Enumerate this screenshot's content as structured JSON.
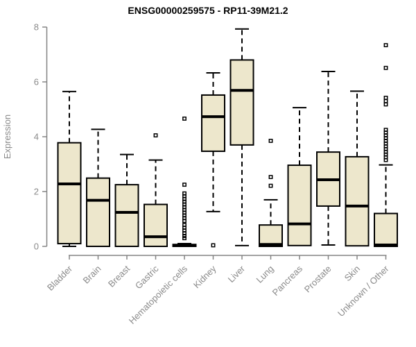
{
  "chart_data": {
    "type": "boxplot",
    "title": "ENSG00000259575 - RP11-39M21.2",
    "ylabel": "Expression",
    "ylim": [
      0,
      8
    ],
    "yticks": [
      0,
      2,
      4,
      6,
      8
    ],
    "grid": false,
    "legend": "none",
    "box_fill": "#EDE7CC",
    "box_stroke": "#000000",
    "median_color": "#000000",
    "axis_color": "#848484",
    "label_color": "#8A8A8A",
    "title_color": "#000000",
    "categories": [
      "Bladder",
      "Brain",
      "Breast",
      "Gastric",
      "Hematopoietic cells",
      "Kidney",
      "Liver",
      "Lung",
      "Pancreas",
      "Prostate",
      "Skin",
      "Unknown / Other"
    ],
    "boxes": [
      {
        "category": "Bladder",
        "low": 0.0,
        "q1": 0.1,
        "median": 2.28,
        "q3": 3.78,
        "high": 5.65,
        "outliers": []
      },
      {
        "category": "Brain",
        "low": 0.0,
        "q1": 0.0,
        "median": 1.68,
        "q3": 2.49,
        "high": 4.27,
        "outliers": []
      },
      {
        "category": "Breast",
        "low": 0.0,
        "q1": 0.0,
        "median": 1.24,
        "q3": 2.25,
        "high": 3.35,
        "outliers": []
      },
      {
        "category": "Gastric",
        "low": 0.0,
        "q1": 0.0,
        "median": 0.35,
        "q3": 1.53,
        "high": 3.15,
        "outliers": [
          4.05
        ]
      },
      {
        "category": "Hematopoietic cells",
        "low": 0.0,
        "q1": 0.0,
        "median": 0.03,
        "q3": 0.07,
        "high": 0.1,
        "outliers": [
          4.66,
          2.25,
          1.93,
          1.83,
          1.73,
          1.63,
          1.53,
          1.43,
          1.33,
          1.23,
          1.13,
          1.03,
          0.93,
          0.78,
          0.68,
          0.58,
          0.48,
          0.38,
          0.3
        ]
      },
      {
        "category": "Kidney",
        "low": 1.27,
        "q1": 3.47,
        "median": 4.73,
        "q3": 5.52,
        "high": 6.33,
        "outliers": [
          0.04
        ]
      },
      {
        "category": "Liver",
        "low": 0.03,
        "q1": 3.7,
        "median": 5.69,
        "q3": 6.8,
        "high": 7.93,
        "outliers": []
      },
      {
        "category": "Lung",
        "low": 0.0,
        "q1": 0.0,
        "median": 0.07,
        "q3": 0.78,
        "high": 1.7,
        "outliers": [
          3.85,
          2.53,
          2.21
        ]
      },
      {
        "category": "Pancreas",
        "low": 0.03,
        "q1": 0.03,
        "median": 0.82,
        "q3": 2.96,
        "high": 5.06,
        "outliers": []
      },
      {
        "category": "Prostate",
        "low": 0.05,
        "q1": 1.47,
        "median": 2.43,
        "q3": 3.44,
        "high": 6.38,
        "outliers": []
      },
      {
        "category": "Skin",
        "low": 0.02,
        "q1": 0.02,
        "median": 1.47,
        "q3": 3.27,
        "high": 5.66,
        "outliers": []
      },
      {
        "category": "Unknown / Other",
        "low": 0.0,
        "q1": 0.0,
        "median": 0.05,
        "q3": 1.2,
        "high": 2.97,
        "outliers": [
          7.34,
          6.51,
          5.42,
          5.3,
          5.18,
          4.25,
          4.15,
          4.05,
          3.95,
          3.85,
          3.75,
          3.65,
          3.55,
          3.45,
          3.35,
          3.25,
          3.15
        ]
      }
    ]
  }
}
